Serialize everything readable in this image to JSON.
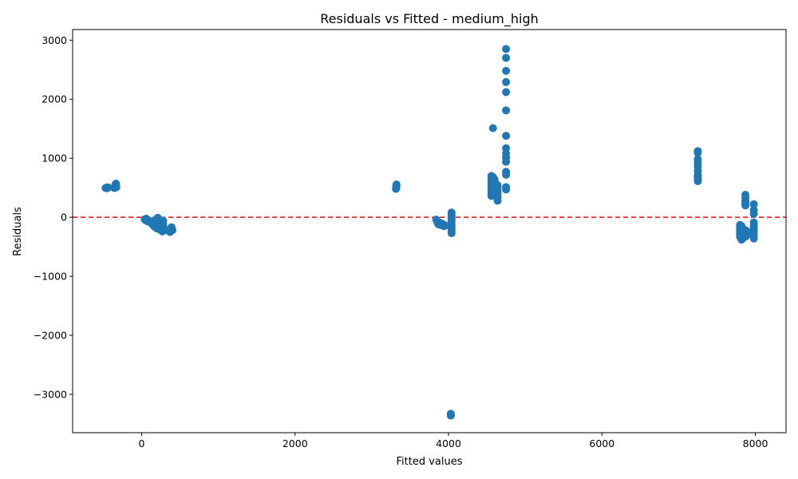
{
  "chart_data": {
    "type": "scatter",
    "title": "Residuals vs Fitted - medium_high",
    "xlabel": "Fitted values",
    "ylabel": "Residuals",
    "xlim": [
      -900,
      8400
    ],
    "ylim": [
      -3650,
      3180
    ],
    "xticks": [
      0,
      2000,
      4000,
      6000,
      8000
    ],
    "xtick_labels": [
      "0",
      "2000",
      "4000",
      "6000",
      "8000"
    ],
    "yticks": [
      -3000,
      -2000,
      -1000,
      0,
      1000,
      2000,
      3000
    ],
    "ytick_labels": [
      "−3000",
      "−2000",
      "−1000",
      "0",
      "1000",
      "2000",
      "3000"
    ],
    "grid": false,
    "reference_line": {
      "y": 0,
      "color": "#ff0000",
      "style": "dashed"
    },
    "marker_color": "#1f77b4",
    "points": [
      {
        "x": -470,
        "y": 495
      },
      {
        "x": -460,
        "y": 500
      },
      {
        "x": -450,
        "y": 490
      },
      {
        "x": -440,
        "y": 505
      },
      {
        "x": -360,
        "y": 500
      },
      {
        "x": -350,
        "y": 520
      },
      {
        "x": -345,
        "y": 540
      },
      {
        "x": -340,
        "y": 555
      },
      {
        "x": -335,
        "y": 570
      },
      {
        "x": -330,
        "y": 510
      },
      {
        "x": -350,
        "y": 495
      },
      {
        "x": 40,
        "y": -35
      },
      {
        "x": 50,
        "y": -50
      },
      {
        "x": 60,
        "y": -25
      },
      {
        "x": 80,
        "y": -70
      },
      {
        "x": 100,
        "y": -60
      },
      {
        "x": 120,
        "y": -90
      },
      {
        "x": 130,
        "y": -110
      },
      {
        "x": 140,
        "y": -80
      },
      {
        "x": 150,
        "y": -130
      },
      {
        "x": 160,
        "y": -150
      },
      {
        "x": 170,
        "y": -120
      },
      {
        "x": 180,
        "y": -170
      },
      {
        "x": 190,
        "y": -140
      },
      {
        "x": 200,
        "y": -190
      },
      {
        "x": 200,
        "y": -30
      },
      {
        "x": 210,
        "y": -60
      },
      {
        "x": 210,
        "y": -10
      },
      {
        "x": 220,
        "y": -100
      },
      {
        "x": 230,
        "y": -200
      },
      {
        "x": 240,
        "y": -150
      },
      {
        "x": 250,
        "y": -220
      },
      {
        "x": 260,
        "y": -180
      },
      {
        "x": 270,
        "y": -240
      },
      {
        "x": 280,
        "y": -120
      },
      {
        "x": 280,
        "y": -60
      },
      {
        "x": 290,
        "y": -200
      },
      {
        "x": 350,
        "y": -230
      },
      {
        "x": 360,
        "y": -210
      },
      {
        "x": 370,
        "y": -250
      },
      {
        "x": 380,
        "y": -190
      },
      {
        "x": 390,
        "y": -170
      },
      {
        "x": 400,
        "y": -220
      },
      {
        "x": 3315,
        "y": 480
      },
      {
        "x": 3318,
        "y": 510
      },
      {
        "x": 3320,
        "y": 530
      },
      {
        "x": 3322,
        "y": 555
      },
      {
        "x": 3320,
        "y": 500
      },
      {
        "x": 3840,
        "y": -40
      },
      {
        "x": 3850,
        "y": -70
      },
      {
        "x": 3860,
        "y": -100
      },
      {
        "x": 3870,
        "y": -120
      },
      {
        "x": 3880,
        "y": -90
      },
      {
        "x": 3900,
        "y": -130
      },
      {
        "x": 3920,
        "y": -110
      },
      {
        "x": 3940,
        "y": -150
      },
      {
        "x": 3960,
        "y": -140
      },
      {
        "x": 4040,
        "y": 80
      },
      {
        "x": 4040,
        "y": 30
      },
      {
        "x": 4040,
        "y": -20
      },
      {
        "x": 4040,
        "y": -70
      },
      {
        "x": 4040,
        "y": -120
      },
      {
        "x": 4040,
        "y": -170
      },
      {
        "x": 4040,
        "y": -220
      },
      {
        "x": 4040,
        "y": -270
      },
      {
        "x": 4030,
        "y": -3330
      },
      {
        "x": 4030,
        "y": -3350
      },
      {
        "x": 4030,
        "y": -3360
      },
      {
        "x": 4560,
        "y": 700
      },
      {
        "x": 4560,
        "y": 650
      },
      {
        "x": 4560,
        "y": 600
      },
      {
        "x": 4560,
        "y": 550
      },
      {
        "x": 4560,
        "y": 500
      },
      {
        "x": 4560,
        "y": 450
      },
      {
        "x": 4560,
        "y": 400
      },
      {
        "x": 4560,
        "y": 360
      },
      {
        "x": 4580,
        "y": 1510
      },
      {
        "x": 4580,
        "y": 680
      },
      {
        "x": 4580,
        "y": 620
      },
      {
        "x": 4580,
        "y": 560
      },
      {
        "x": 4580,
        "y": 500
      },
      {
        "x": 4580,
        "y": 440
      },
      {
        "x": 4580,
        "y": 380
      },
      {
        "x": 4600,
        "y": 640
      },
      {
        "x": 4600,
        "y": 540
      },
      {
        "x": 4600,
        "y": 470
      },
      {
        "x": 4600,
        "y": 400
      },
      {
        "x": 4620,
        "y": 560
      },
      {
        "x": 4620,
        "y": 480
      },
      {
        "x": 4620,
        "y": 420
      },
      {
        "x": 4640,
        "y": 540
      },
      {
        "x": 4640,
        "y": 500
      },
      {
        "x": 4640,
        "y": 450
      },
      {
        "x": 4640,
        "y": 400
      },
      {
        "x": 4640,
        "y": 340
      },
      {
        "x": 4640,
        "y": 280
      },
      {
        "x": 4750,
        "y": 2850
      },
      {
        "x": 4750,
        "y": 2700
      },
      {
        "x": 4750,
        "y": 2480
      },
      {
        "x": 4750,
        "y": 2290
      },
      {
        "x": 4750,
        "y": 2120
      },
      {
        "x": 4750,
        "y": 1810
      },
      {
        "x": 4750,
        "y": 1380
      },
      {
        "x": 4750,
        "y": 1170
      },
      {
        "x": 4750,
        "y": 1080
      },
      {
        "x": 4750,
        "y": 1010
      },
      {
        "x": 4750,
        "y": 940
      },
      {
        "x": 4750,
        "y": 770
      },
      {
        "x": 4750,
        "y": 720
      },
      {
        "x": 4750,
        "y": 510
      },
      {
        "x": 4750,
        "y": 470
      },
      {
        "x": 7250,
        "y": 1120
      },
      {
        "x": 7250,
        "y": 1090
      },
      {
        "x": 7250,
        "y": 980
      },
      {
        "x": 7250,
        "y": 920
      },
      {
        "x": 7250,
        "y": 860
      },
      {
        "x": 7250,
        "y": 790
      },
      {
        "x": 7250,
        "y": 720
      },
      {
        "x": 7250,
        "y": 680
      },
      {
        "x": 7250,
        "y": 640
      },
      {
        "x": 7250,
        "y": 610
      },
      {
        "x": 7800,
        "y": -130
      },
      {
        "x": 7800,
        "y": -170
      },
      {
        "x": 7800,
        "y": -210
      },
      {
        "x": 7800,
        "y": -250
      },
      {
        "x": 7800,
        "y": -290
      },
      {
        "x": 7800,
        "y": -330
      },
      {
        "x": 7820,
        "y": -150
      },
      {
        "x": 7820,
        "y": -230
      },
      {
        "x": 7820,
        "y": -310
      },
      {
        "x": 7820,
        "y": -380
      },
      {
        "x": 7840,
        "y": -200
      },
      {
        "x": 7840,
        "y": -280
      },
      {
        "x": 7840,
        "y": -350
      },
      {
        "x": 7870,
        "y": 380
      },
      {
        "x": 7870,
        "y": 330
      },
      {
        "x": 7870,
        "y": 280
      },
      {
        "x": 7870,
        "y": 240
      },
      {
        "x": 7870,
        "y": 200
      },
      {
        "x": 7870,
        "y": -220
      },
      {
        "x": 7870,
        "y": -270
      },
      {
        "x": 7870,
        "y": -330
      },
      {
        "x": 7890,
        "y": -240
      },
      {
        "x": 7890,
        "y": -300
      },
      {
        "x": 7980,
        "y": 220
      },
      {
        "x": 7980,
        "y": 120
      },
      {
        "x": 7980,
        "y": 60
      },
      {
        "x": 7980,
        "y": -90
      },
      {
        "x": 7980,
        "y": -140
      },
      {
        "x": 7980,
        "y": -180
      },
      {
        "x": 7980,
        "y": -220
      },
      {
        "x": 7980,
        "y": -260
      },
      {
        "x": 7980,
        "y": -310
      },
      {
        "x": 7980,
        "y": -360
      }
    ]
  }
}
